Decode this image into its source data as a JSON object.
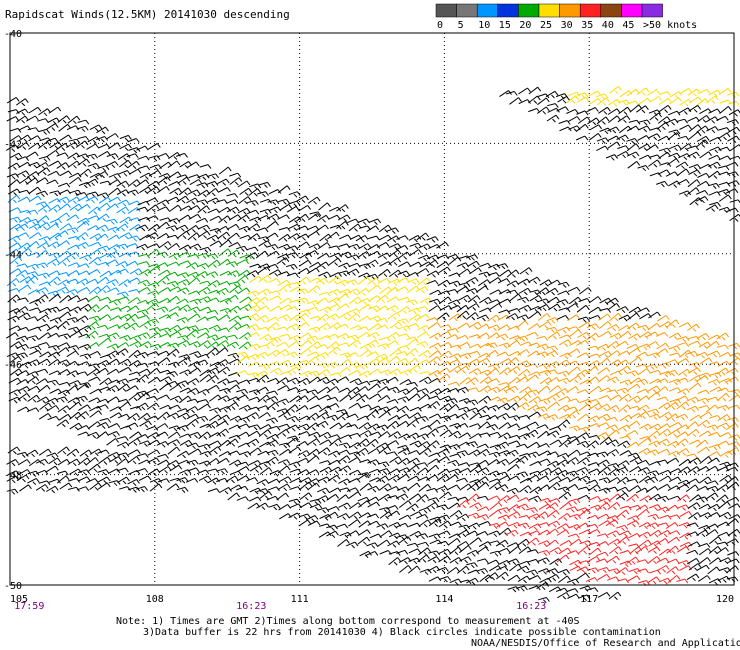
{
  "title": "Rapidscat Winds(12.5KM) 20141030 descending",
  "legend": {
    "labels": [
      "0",
      "5",
      "10",
      "15",
      "20",
      "25",
      "30",
      "35",
      "40",
      "45",
      ">50 knots"
    ],
    "colors": [
      "#555555",
      "#777777",
      "#0095ff",
      "#0033dd",
      "#00aa00",
      "#ffdd00",
      "#ff9900",
      "#ff2222",
      "#8b4513",
      "#ff00ff",
      "#8a2be2"
    ]
  },
  "map": {
    "x_ticks": [
      "105",
      "108",
      "111",
      "114",
      "117",
      "120"
    ],
    "y_ticks": [
      "-40",
      "-42",
      "-44",
      "-46",
      "-48",
      "-50"
    ],
    "times": [
      {
        "label": "17:59",
        "lon": 105.4,
        "color": "#800080"
      },
      {
        "label": "16:23",
        "lon": 110.0,
        "color": "#800080"
      },
      {
        "label": "16:23",
        "lon": 115.8,
        "color": "#800080"
      }
    ],
    "grid": "dotted"
  },
  "footer": {
    "note1": "Note: 1) Times are GMT 2)Times along bottom correspond to measurement at -40S",
    "note2": "3)Data buffer is 22 hrs from 20141030 4) Black circles indicate possible contamination",
    "credit": "NOAA/NESDIS/Office of Research and Applications"
  }
}
